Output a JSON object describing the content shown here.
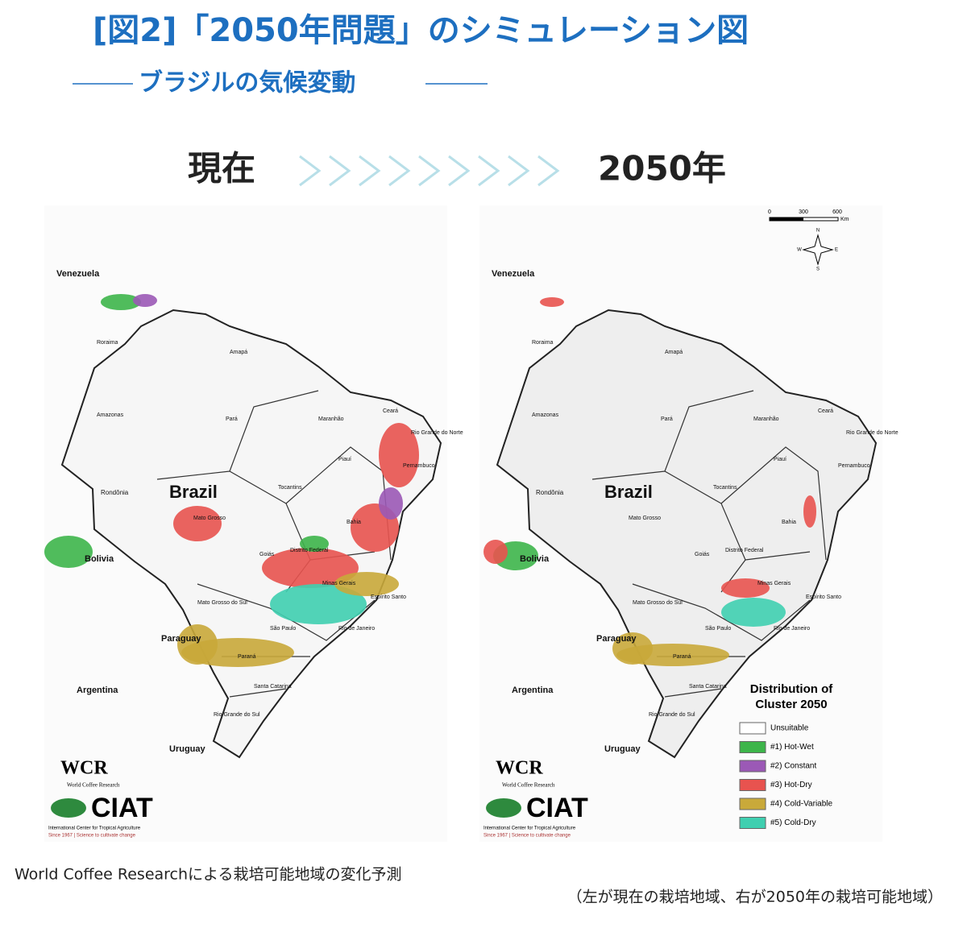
{
  "header": {
    "title": "[図2]「2050年問題」のシミュレーション図",
    "subtitle": "ブラジルの気候変動"
  },
  "panels": [
    {
      "heading": "現在"
    },
    {
      "heading": "2050年"
    }
  ],
  "map_labels": [
    "Venezuela",
    "Roraima",
    "Amapá",
    "Amazonas",
    "Pará",
    "Maranhão",
    "Ceará",
    "Rio Grande do Norte",
    "Piauí",
    "Pernambuco",
    "Tocantins",
    "Rondônia",
    "Brazil",
    "Mato Grosso",
    "Bahia",
    "Bolivia",
    "Goiás",
    "Distrito Federal",
    "Minas Gerais",
    "Espírito Santo",
    "Mato Grosso do Sul",
    "São Paulo",
    "Rio de Janeiro",
    "Paraguay",
    "Paraná",
    "Argentina",
    "Santa Catarina",
    "Rio Grande do Sul",
    "Uruguay"
  ],
  "logos": {
    "wcr": "WCR",
    "wcr_name": "World Coffee Research",
    "ciat": "CIAT",
    "ciat_name": "International Center for Tropical Agriculture",
    "ciat_since": "Since 1967 | Science to cultivate change"
  },
  "scale": {
    "ticks": [
      0,
      300,
      600
    ],
    "unit": "Km"
  },
  "compass": [
    "N",
    "E",
    "S",
    "W"
  ],
  "legend": {
    "title_lines": [
      "Distribution of",
      "Cluster 2050"
    ],
    "items": [
      {
        "label": "Unsuitable",
        "color": "#ffffff"
      },
      {
        "label": "#1) Hot-Wet",
        "color": "#3db54a"
      },
      {
        "label": "#2) Constant",
        "color": "#9b59b6"
      },
      {
        "label": "#3) Hot-Dry",
        "color": "#e8534f"
      },
      {
        "label": "#4) Cold-Variable",
        "color": "#c9a93a"
      },
      {
        "label": "#5) Cold-Dry",
        "color": "#3fcfb0"
      }
    ]
  },
  "caption": [
    "World Coffee Researchによる栽培可能地域の変化予測",
    "（左が現在の栽培地域、右が2050年の栽培可能地域）"
  ]
}
